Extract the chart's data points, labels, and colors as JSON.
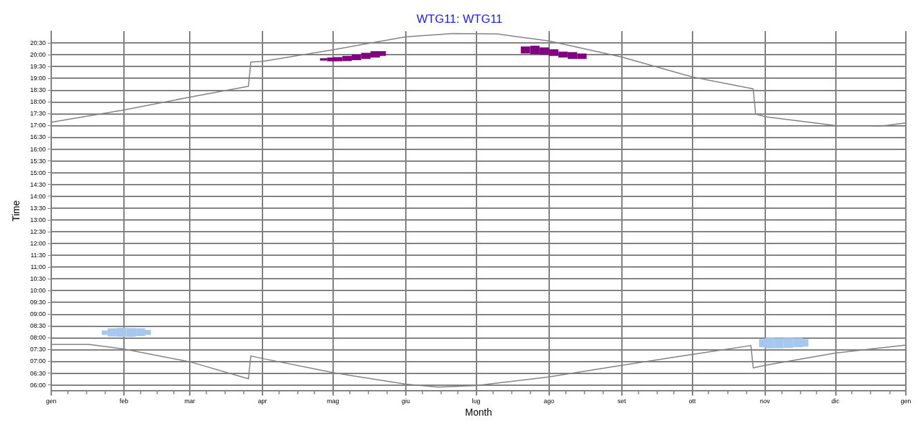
{
  "chart_data": {
    "type": "line",
    "title": "WTG11: WTG11",
    "xlabel": "Month",
    "ylabel": "Time",
    "grid": true,
    "xlim": [
      "--01-01",
      "--12-31"
    ],
    "xticks": [
      {
        "value": "--01-01",
        "label": "gen"
      },
      {
        "value": "--01-08",
        "label": null
      },
      {
        "value": "--01-16",
        "label": null
      },
      {
        "value": "--01-24",
        "label": null
      },
      {
        "value": "--02-01",
        "label": "feb"
      },
      {
        "value": "--02-08",
        "label": null
      },
      {
        "value": "--02-15",
        "label": null
      },
      {
        "value": "--02-22",
        "label": null
      },
      {
        "value": "--03-01",
        "label": "mar"
      },
      {
        "value": "--03-08",
        "label": null
      },
      {
        "value": "--03-16",
        "label": null
      },
      {
        "value": "--03-24",
        "label": null
      },
      {
        "value": "--04-01",
        "label": "apr"
      },
      {
        "value": "--04-08",
        "label": null
      },
      {
        "value": "--04-16",
        "label": null
      },
      {
        "value": "--04-23",
        "label": null
      },
      {
        "value": "--05-01",
        "label": "mag"
      },
      {
        "value": "--05-08",
        "label": null
      },
      {
        "value": "--05-16",
        "label": null
      },
      {
        "value": "--05-24",
        "label": null
      },
      {
        "value": "--06-01",
        "label": "giu"
      },
      {
        "value": "--06-08",
        "label": null
      },
      {
        "value": "--06-16",
        "label": null
      },
      {
        "value": "--06-23",
        "label": null
      },
      {
        "value": "--07-01",
        "label": "lug"
      },
      {
        "value": "--07-08",
        "label": null
      },
      {
        "value": "--07-16",
        "label": null
      },
      {
        "value": "--07-24",
        "label": null
      },
      {
        "value": "--08-01",
        "label": "ago"
      },
      {
        "value": "--08-08",
        "label": null
      },
      {
        "value": "--08-16",
        "label": null
      },
      {
        "value": "--08-24",
        "label": null
      },
      {
        "value": "--09-01",
        "label": "set"
      },
      {
        "value": "--09-08",
        "label": null
      },
      {
        "value": "--09-16",
        "label": null
      },
      {
        "value": "--09-23",
        "label": null
      },
      {
        "value": "--10-01",
        "label": "ott"
      },
      {
        "value": "--10-08",
        "label": null
      },
      {
        "value": "--10-16",
        "label": null
      },
      {
        "value": "--10-24",
        "label": null
      },
      {
        "value": "--11-01",
        "label": "nov"
      },
      {
        "value": "--11-08",
        "label": null
      },
      {
        "value": "--11-16",
        "label": null
      },
      {
        "value": "--11-23",
        "label": null
      },
      {
        "value": "--12-01",
        "label": "dic"
      },
      {
        "value": "--12-08",
        "label": null
      },
      {
        "value": "--12-16",
        "label": null
      },
      {
        "value": "--12-24",
        "label": null
      },
      {
        "value": "--12-31",
        "label": "gen"
      }
    ],
    "ylim": [
      5.75,
      21
    ],
    "yticks": [
      {
        "value": 6,
        "label": "06:00"
      },
      {
        "value": 6.5,
        "label": "06:30"
      },
      {
        "value": 7,
        "label": "07:00"
      },
      {
        "value": 7.5,
        "label": "07:30"
      },
      {
        "value": 8,
        "label": "08:00"
      },
      {
        "value": 8.5,
        "label": "08:30"
      },
      {
        "value": 9,
        "label": "09:00"
      },
      {
        "value": 9.5,
        "label": "09:30"
      },
      {
        "value": 10,
        "label": "10:00"
      },
      {
        "value": 10.5,
        "label": "10:30"
      },
      {
        "value": 11,
        "label": "11:00"
      },
      {
        "value": 11.5,
        "label": "11:30"
      },
      {
        "value": 12,
        "label": "12:00"
      },
      {
        "value": 12.5,
        "label": "12:30"
      },
      {
        "value": 13,
        "label": "13:00"
      },
      {
        "value": 13.5,
        "label": "13:30"
      },
      {
        "value": 14,
        "label": "14:00"
      },
      {
        "value": 14.5,
        "label": "14:30"
      },
      {
        "value": 15,
        "label": "15:00"
      },
      {
        "value": 15.5,
        "label": "15:30"
      },
      {
        "value": 16,
        "label": "16:00"
      },
      {
        "value": 16.5,
        "label": "16:30"
      },
      {
        "value": 17,
        "label": "17:00"
      },
      {
        "value": 17.5,
        "label": "17:30"
      },
      {
        "value": 18,
        "label": "18:00"
      },
      {
        "value": 18.5,
        "label": "18:30"
      },
      {
        "value": 19,
        "label": "19:00"
      },
      {
        "value": 19.5,
        "label": "19:30"
      },
      {
        "value": 20,
        "label": "20:00"
      },
      {
        "value": 20.5,
        "label": "20:30"
      }
    ],
    "series": [
      {
        "color": "#808080",
        "x": [
          "--01-01",
          "--02-01",
          "--03-01",
          "--03-26",
          "--03-27",
          "--04-01",
          "--05-01",
          "--06-01",
          "--06-21",
          "--07-10",
          "--08-01",
          "--09-01",
          "--10-01",
          "--10-27",
          "--10-28",
          "--11-01",
          "--12-01",
          "--12-20",
          "--12-31"
        ],
        "values": [
          17.14,
          17.66,
          18.2,
          18.66,
          19.69,
          19.72,
          20.21,
          20.76,
          20.9,
          20.88,
          20.58,
          19.9,
          19.06,
          18.55,
          17.49,
          17.37,
          17.0,
          16.97,
          17.11
        ]
      },
      {
        "color": "#808080",
        "x": [
          "--01-01",
          "--01-17",
          "--02-01",
          "--03-01",
          "--03-26",
          "--03-27",
          "--04-01",
          "--05-01",
          "--06-01",
          "--06-15",
          "--07-01",
          "--08-01",
          "--09-01",
          "--10-01",
          "--10-26",
          "--10-27",
          "--11-01",
          "--12-01",
          "--12-31"
        ],
        "values": [
          7.72,
          7.72,
          7.52,
          6.98,
          6.26,
          7.23,
          7.12,
          6.52,
          6.03,
          5.91,
          5.97,
          6.34,
          6.83,
          7.29,
          7.67,
          6.72,
          6.83,
          7.35,
          7.69
        ]
      },
      {
        "type": "bar",
        "color": "#a6c8ee",
        "x": [
          "--01-24",
          "--01-27",
          "--01-31",
          "--02-04",
          "--02-08",
          "--02-11",
          "--10-31",
          "--11-03",
          "--11-07",
          "--11-11",
          "--11-15",
          "--11-18"
        ],
        "base": [
          8.12,
          8.05,
          8.04,
          8.04,
          8.07,
          8.12,
          7.6,
          7.55,
          7.55,
          7.57,
          7.6,
          7.62
        ],
        "values": [
          0.19,
          0.35,
          0.38,
          0.37,
          0.33,
          0.21,
          0.34,
          0.45,
          0.44,
          0.43,
          0.39,
          0.32
        ]
      },
      {
        "type": "bar",
        "color": "#800080",
        "x": [
          "--04-27",
          "--04-30",
          "--05-03",
          "--05-07",
          "--05-11",
          "--05-15",
          "--05-19",
          "--05-22",
          "--07-22",
          "--07-26",
          "--07-30",
          "--08-03",
          "--08-07",
          "--08-11",
          "--08-15"
        ],
        "base": [
          19.75,
          19.72,
          19.72,
          19.73,
          19.77,
          19.82,
          19.88,
          19.95,
          20.05,
          20.02,
          20.0,
          19.95,
          19.88,
          19.82,
          19.82
        ],
        "values": [
          0.1,
          0.16,
          0.18,
          0.22,
          0.24,
          0.26,
          0.27,
          0.2,
          0.3,
          0.36,
          0.31,
          0.28,
          0.25,
          0.29,
          0.23
        ]
      }
    ]
  }
}
